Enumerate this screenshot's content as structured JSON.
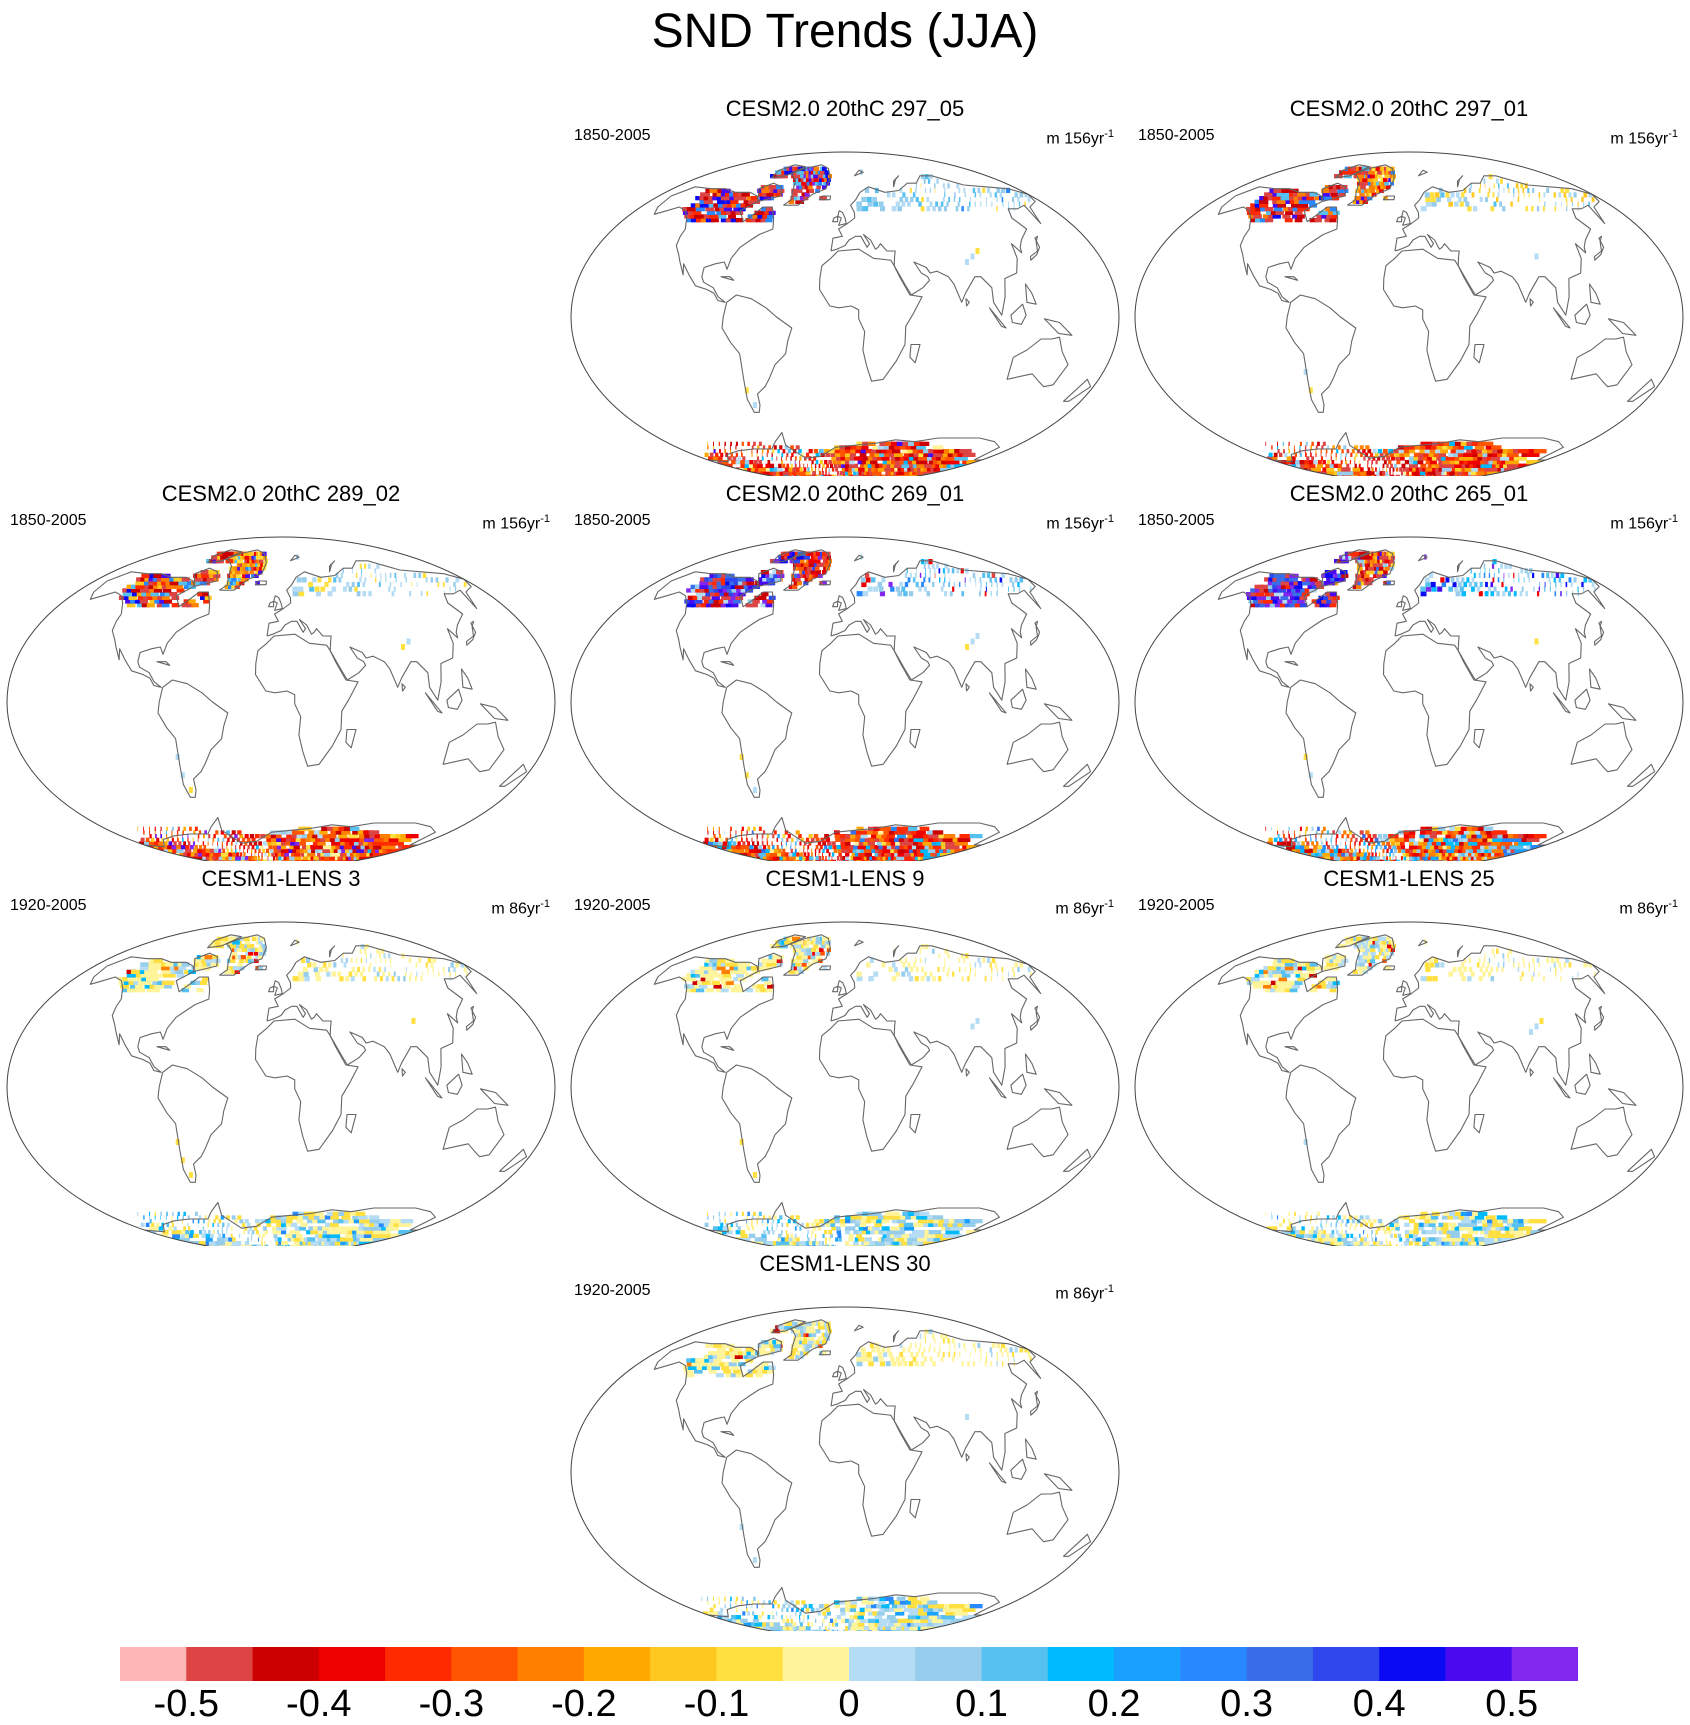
{
  "title": "SND Trends (JJA)",
  "panels": [
    {
      "id": "p1",
      "title": "CESM2.0 20thC 297_05",
      "period": "1850-2005",
      "units_base": "m 156yr",
      "units_exp": "-1",
      "scheme": "cesm2a"
    },
    {
      "id": "p2",
      "title": "CESM2.0 20thC 297_01",
      "period": "1850-2005",
      "units_base": "m 156yr",
      "units_exp": "-1",
      "scheme": "cesm2b"
    },
    {
      "id": "p3",
      "title": "CESM2.0 20thC 289_02",
      "period": "1850-2005",
      "units_base": "m 156yr",
      "units_exp": "-1",
      "scheme": "cesm2c"
    },
    {
      "id": "p4",
      "title": "CESM2.0 20thC 269_01",
      "period": "1850-2005",
      "units_base": "m 156yr",
      "units_exp": "-1",
      "scheme": "cesm2d"
    },
    {
      "id": "p5",
      "title": "CESM2.0 20thC 265_01",
      "period": "1850-2005",
      "units_base": "m 156yr",
      "units_exp": "-1",
      "scheme": "cesm2e"
    },
    {
      "id": "p6",
      "title": "CESM1-LENS 3",
      "period": "1920-2005",
      "units_base": "m 86yr",
      "units_exp": "-1",
      "scheme": "lens"
    },
    {
      "id": "p7",
      "title": "CESM1-LENS 9",
      "period": "1920-2005",
      "units_base": "m 86yr",
      "units_exp": "-1",
      "scheme": "lens"
    },
    {
      "id": "p8",
      "title": "CESM1-LENS 25",
      "period": "1920-2005",
      "units_base": "m 86yr",
      "units_exp": "-1",
      "scheme": "lens"
    },
    {
      "id": "p9",
      "title": "CESM1-LENS 30",
      "period": "1920-2005",
      "units_base": "m 86yr",
      "units_exp": "-1",
      "scheme": "lens"
    }
  ],
  "colorbar": {
    "colors": [
      "#ffb6b6",
      "#dd4444",
      "#cc0000",
      "#ee0000",
      "#ff2a00",
      "#ff5500",
      "#ff8000",
      "#ffa800",
      "#ffc820",
      "#ffe040",
      "#fff49a",
      "#b4dcf4",
      "#96cdec",
      "#56c0f0",
      "#00baff",
      "#1aa0ff",
      "#2888ff",
      "#3a6ee8",
      "#2f48ee",
      "#0a0af5",
      "#4a0af0",
      "#8228ee"
    ],
    "tick_labels": [
      "-0.5",
      "-0.4",
      "-0.3",
      "-0.2",
      "-0.1",
      "0",
      "0.1",
      "0.2",
      "0.3",
      "0.4",
      "0.5"
    ]
  }
}
